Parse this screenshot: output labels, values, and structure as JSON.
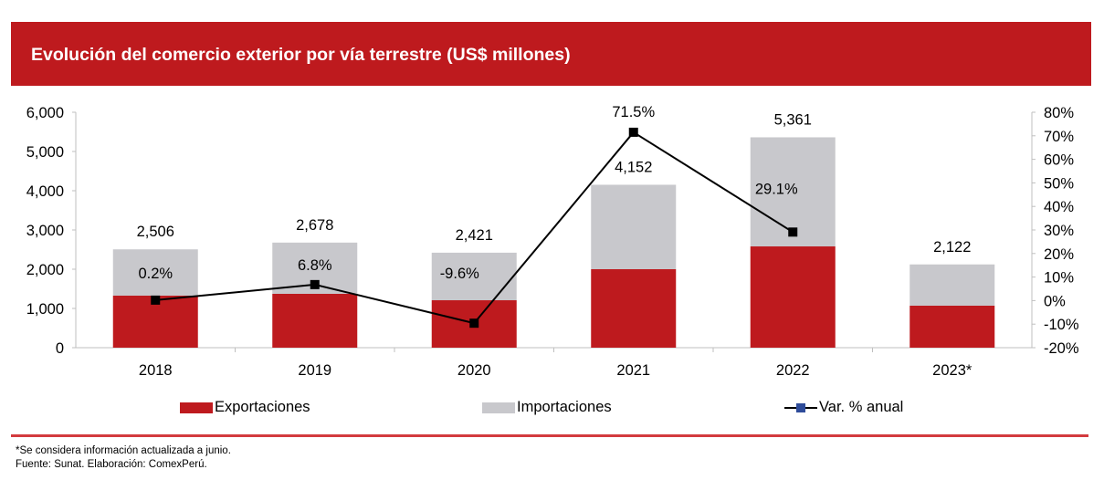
{
  "header": {
    "title": "Evolución del comercio exterior por vía terrestre (US$ millones)"
  },
  "colors": {
    "title_bg": "#BE1A1E",
    "exports": "#BE1A1E",
    "imports": "#C8C8CC",
    "line": "#000000",
    "legend_marker": "#2E4C9A",
    "footer_rule": "#D33A3E"
  },
  "chart_data": {
    "type": "bar",
    "subtype": "stacked-bar-with-line",
    "title": "Evolución del comercio exterior por vía terrestre (US$ millones)",
    "categories": [
      "2018",
      "2019",
      "2020",
      "2021",
      "2022",
      "2023*"
    ],
    "series": [
      {
        "name": "Exportaciones",
        "type": "bar",
        "axis": "left",
        "values": [
          1326,
          1372,
          1209,
          2000,
          2581,
          1070
        ]
      },
      {
        "name": "Importaciones",
        "type": "bar",
        "axis": "left",
        "values": [
          1180,
          1306,
          1212,
          2152,
          2780,
          1052
        ]
      },
      {
        "name": "Var. % anual",
        "type": "line",
        "axis": "right",
        "values": [
          0.2,
          6.8,
          -9.6,
          71.5,
          29.1,
          null
        ]
      }
    ],
    "totals": [
      2506,
      2678,
      2421,
      4152,
      5361,
      2122
    ],
    "total_labels": [
      "2,506",
      "2,678",
      "2,421",
      "4,152",
      "5,361",
      "2,122"
    ],
    "line_labels": [
      "0.2%",
      "6.8%",
      "-9.6%",
      "71.5%",
      "29.1%",
      ""
    ],
    "y_left": {
      "min": 0,
      "max": 6000,
      "step": 1000,
      "ticks": [
        "0",
        "1,000",
        "2,000",
        "3,000",
        "4,000",
        "5,000",
        "6,000"
      ]
    },
    "y_right": {
      "min": -20,
      "max": 80,
      "step": 10,
      "ticks": [
        "-20%",
        "-10%",
        "0%",
        "10%",
        "20%",
        "30%",
        "40%",
        "50%",
        "60%",
        "70%",
        "80%"
      ]
    },
    "xlabel": "",
    "ylabel": "",
    "grid": false,
    "legend_position": "bottom"
  },
  "legend": {
    "items": [
      {
        "label": "Exportaciones",
        "kind": "bar-exports"
      },
      {
        "label": "Importaciones",
        "kind": "bar-imports"
      },
      {
        "label": "Var. % anual",
        "kind": "line-marker"
      }
    ]
  },
  "footer": {
    "note": "*Se considera información actualizada a junio.",
    "source": "Fuente: Sunat. Elaboración: ComexPerú."
  }
}
